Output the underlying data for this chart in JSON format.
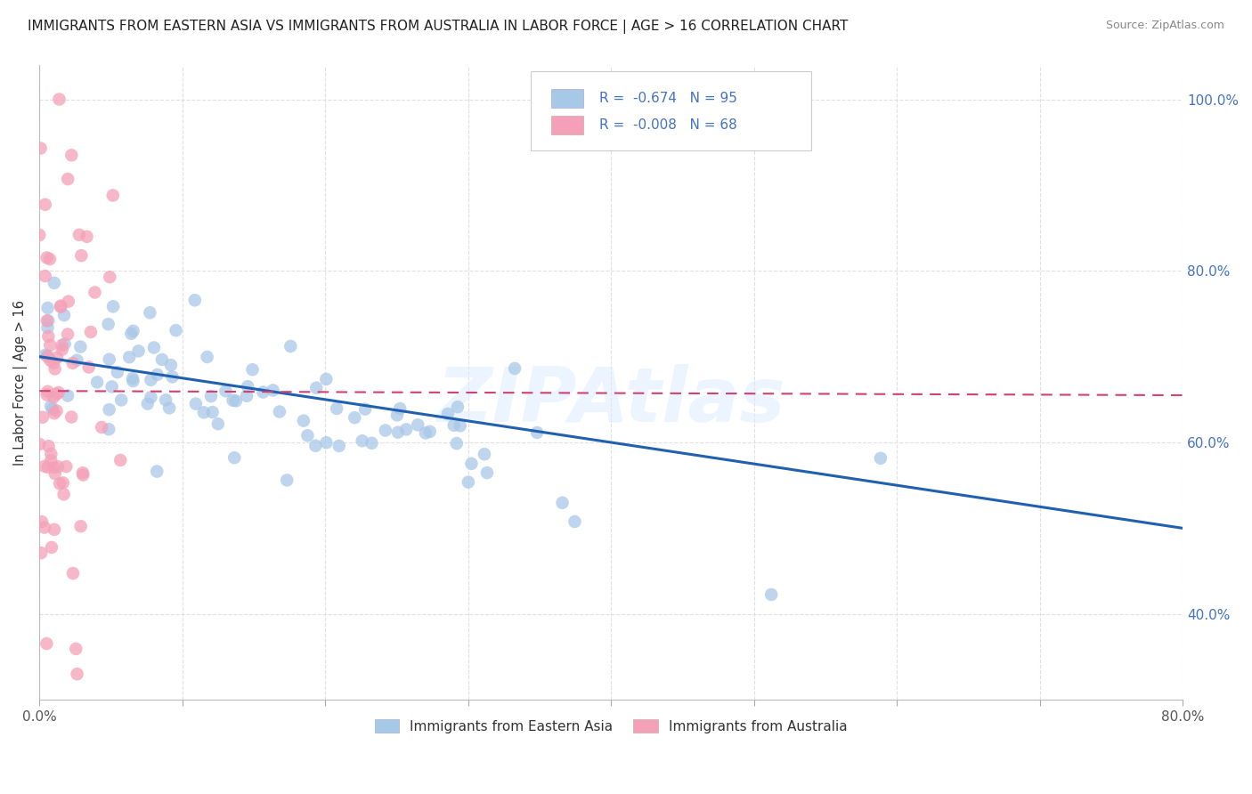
{
  "title": "IMMIGRANTS FROM EASTERN ASIA VS IMMIGRANTS FROM AUSTRALIA IN LABOR FORCE | AGE > 16 CORRELATION CHART",
  "source": "Source: ZipAtlas.com",
  "ylabel": "In Labor Force | Age > 16",
  "legend_labels": [
    "Immigrants from Eastern Asia",
    "Immigrants from Australia"
  ],
  "r_values": [
    -0.674,
    -0.008
  ],
  "n_values": [
    95,
    68
  ],
  "xlim": [
    0.0,
    0.8
  ],
  "ylim": [
    0.3,
    1.04
  ],
  "x_ticks": [
    0.0,
    0.1,
    0.2,
    0.3,
    0.4,
    0.5,
    0.6,
    0.7,
    0.8
  ],
  "y_ticks": [
    0.4,
    0.6,
    0.8,
    1.0
  ],
  "y_tick_labels": [
    "40.0%",
    "60.0%",
    "80.0%",
    "100.0%"
  ],
  "color_blue": "#a8c8e8",
  "color_pink": "#f4a0b8",
  "color_blue_line": "#2060b0",
  "color_pink_line": "#d04070",
  "color_text": "#4472C4",
  "background_color": "#ffffff",
  "grid_color": "#dddddd",
  "watermark": "ZIPAtlas",
  "ea_trend_x": [
    0.0,
    0.8
  ],
  "ea_trend_y": [
    0.7,
    0.5
  ],
  "au_trend_x": [
    0.0,
    0.8
  ],
  "au_trend_y": [
    0.66,
    0.655
  ],
  "figsize": [
    14.06,
    8.92
  ],
  "dpi": 100
}
